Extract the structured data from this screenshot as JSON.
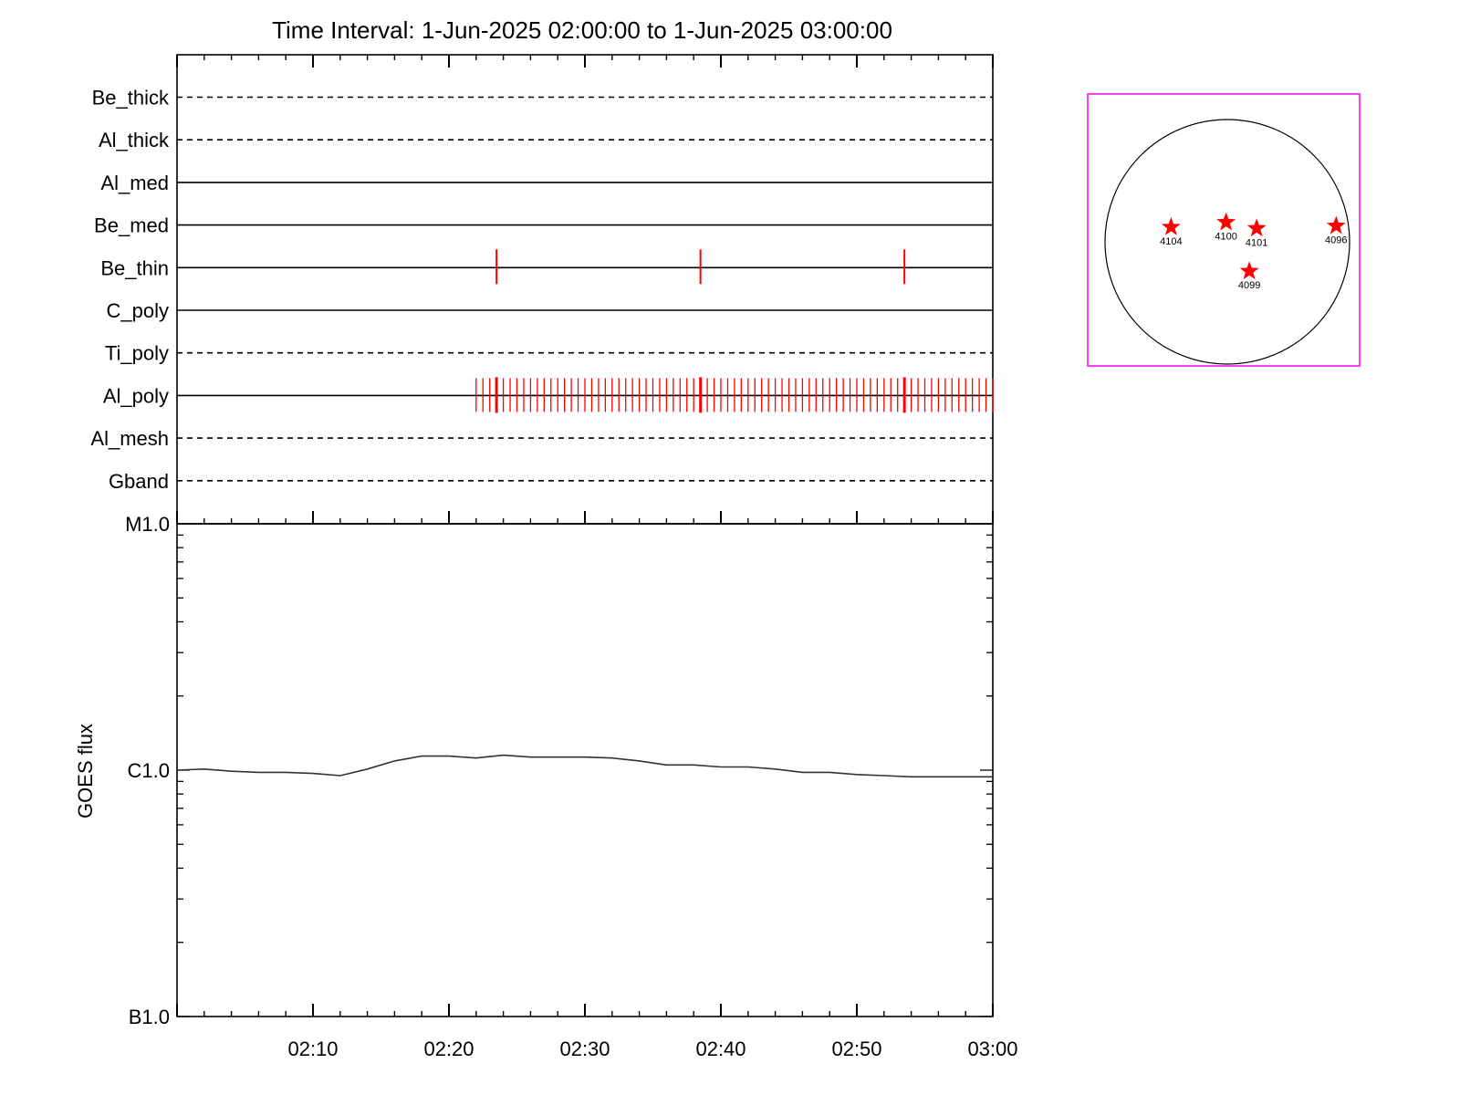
{
  "title": "Time Interval:  1-Jun-2025 02:00:00 to  1-Jun-2025 03:00:00",
  "colors": {
    "axis": "#000000",
    "event": "#ff0000",
    "goes_curve": "#333333",
    "map_frame": "#ff00ff",
    "sun_disk": "#000000",
    "region_marker": "#ff0000"
  },
  "chart_data": [
    {
      "type": "timeline",
      "x_range": [
        "02:00",
        "03:00"
      ],
      "grid": false,
      "channels": [
        {
          "label": "Be_thick",
          "style": "dashed",
          "events": []
        },
        {
          "label": "Al_thick",
          "style": "dashed",
          "events": []
        },
        {
          "label": "Al_med",
          "style": "solid",
          "events": []
        },
        {
          "label": "Be_med",
          "style": "solid",
          "events": []
        },
        {
          "label": "Be_thin",
          "style": "solid",
          "events": [
            "02:23.5",
            "02:38.5",
            "02:53.5"
          ]
        },
        {
          "label": "C_poly",
          "style": "solid",
          "events": []
        },
        {
          "label": "Ti_poly",
          "style": "dashed",
          "events": []
        },
        {
          "label": "Al_poly",
          "style": "solid",
          "events_start": "02:22",
          "events_end": "03:00",
          "events_interval_s": 30,
          "bold_events": [
            "02:23.5",
            "02:38.5",
            "02:53.5"
          ]
        },
        {
          "label": "Al_mesh",
          "style": "dashed",
          "events": []
        },
        {
          "label": "Gband",
          "style": "dashed",
          "events": []
        }
      ]
    },
    {
      "type": "line",
      "ylabel": "GOES flux",
      "yscale": "log",
      "ylim": [
        1e-07,
        1e-05
      ],
      "ytick_labels": [
        {
          "value": 1e-05,
          "label": "M1.0"
        },
        {
          "value": 1e-06,
          "label": "C1.0"
        },
        {
          "value": 1e-07,
          "label": "B1.0"
        }
      ],
      "x_range": [
        "02:00",
        "03:00"
      ],
      "xtick_labels": [
        "02:10",
        "02:20",
        "02:30",
        "02:40",
        "02:50",
        "03:00"
      ],
      "series": [
        {
          "x": [
            "02:00",
            "02:02",
            "02:04",
            "02:06",
            "02:08",
            "02:10",
            "02:12",
            "02:14",
            "02:16",
            "02:18",
            "02:20",
            "02:22",
            "02:24",
            "02:26",
            "02:28",
            "02:30",
            "02:32",
            "02:34",
            "02:36",
            "02:38",
            "02:40",
            "02:42",
            "02:44",
            "02:46",
            "02:48",
            "02:50",
            "02:52",
            "02:54",
            "02:56",
            "02:58",
            "03:00"
          ],
          "y": [
            1e-06,
            1.01e-06,
            9.9e-07,
            9.8e-07,
            9.8e-07,
            9.7e-07,
            9.5e-07,
            1.01e-06,
            1.09e-06,
            1.14e-06,
            1.14e-06,
            1.12e-06,
            1.15e-06,
            1.13e-06,
            1.13e-06,
            1.13e-06,
            1.12e-06,
            1.09e-06,
            1.05e-06,
            1.05e-06,
            1.03e-06,
            1.03e-06,
            1.01e-06,
            9.8e-07,
            9.8e-07,
            9.6e-07,
            9.5e-07,
            9.4e-07,
            9.4e-07,
            9.4e-07,
            9.4e-07
          ]
        }
      ]
    },
    {
      "type": "scatter",
      "grid": false,
      "points": [
        {
          "label": "4104",
          "x": -0.46,
          "y": 0.12
        },
        {
          "label": "4100",
          "x": -0.01,
          "y": 0.16
        },
        {
          "label": "4101",
          "x": 0.24,
          "y": 0.11
        },
        {
          "label": "4096",
          "x": 0.89,
          "y": 0.13
        },
        {
          "label": "4099",
          "x": 0.18,
          "y": -0.24
        }
      ]
    }
  ]
}
